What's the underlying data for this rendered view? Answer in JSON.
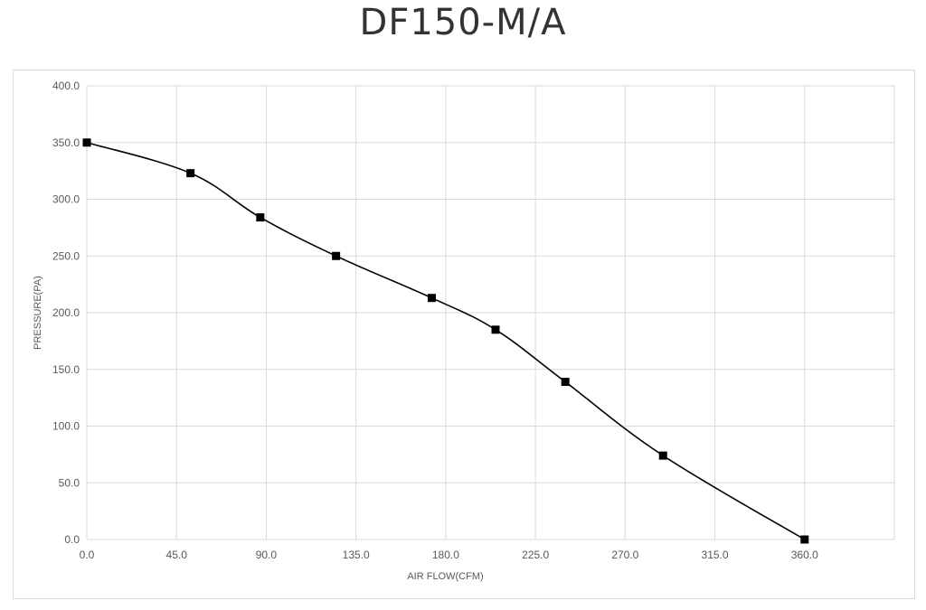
{
  "chart_data": {
    "type": "line",
    "title": "DF150-M/A",
    "xlabel": "AIR FLOW(CFM)",
    "ylabel": "PRESSURE(PA)",
    "xlim": [
      0,
      405
    ],
    "ylim": [
      0,
      400
    ],
    "x_ticks": [
      "0.0",
      "45.0",
      "90.0",
      "135.0",
      "180.0",
      "225.0",
      "270.0",
      "315.0",
      "360.0"
    ],
    "y_ticks": [
      "0.0",
      "50.0",
      "100.0",
      "150.0",
      "200.0",
      "250.0",
      "300.0",
      "350.0",
      "400.0"
    ],
    "grid": true,
    "series": [
      {
        "marker": "square",
        "color": "#000000",
        "x": [
          0,
          52,
          87,
          125,
          173,
          205,
          240,
          289,
          360
        ],
        "y": [
          350,
          323,
          284,
          250,
          213,
          185,
          139,
          74,
          0
        ]
      }
    ]
  }
}
